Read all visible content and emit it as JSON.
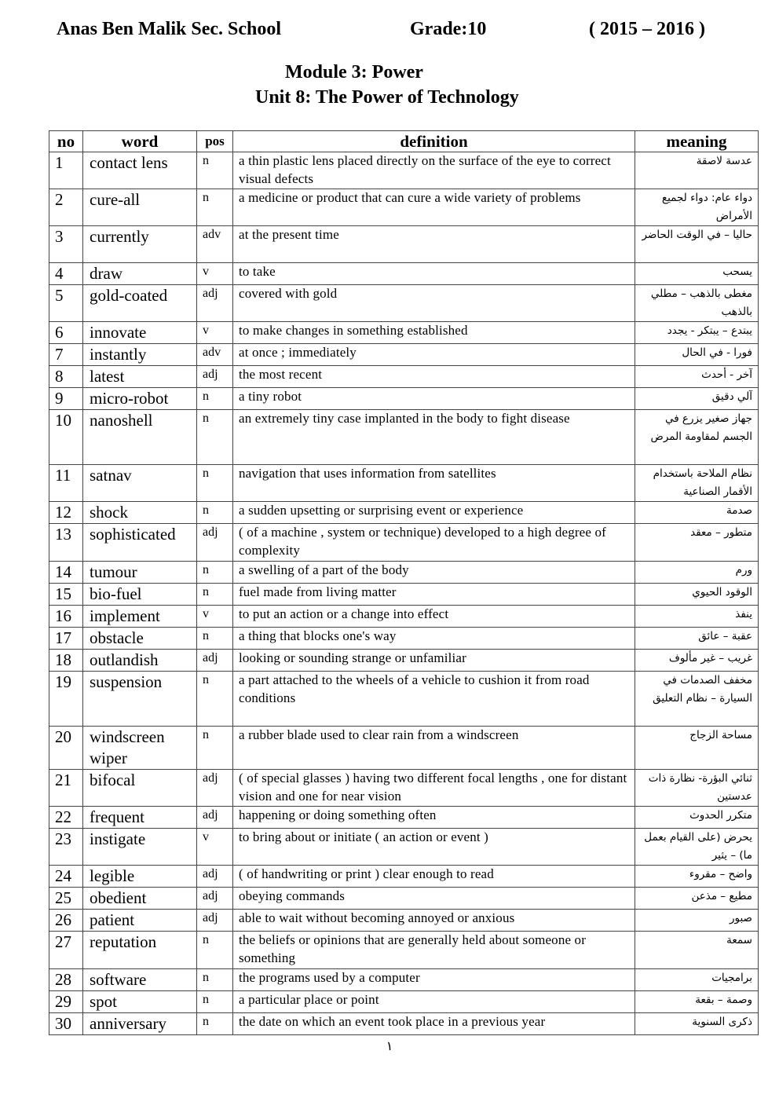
{
  "header": {
    "school": "Anas Ben Malik Sec. School",
    "grade": "Grade:10",
    "year": "( 2015 – 2016 )"
  },
  "module_title": "Module 3: Power",
  "unit_title": "Unit 8: The Power of Technology",
  "table": {
    "columns": [
      "no",
      "word",
      "pos",
      "definition",
      "meaning"
    ],
    "rows": [
      {
        "no": "1",
        "word": "contact lens",
        "pos": "n",
        "definition": "a thin plastic lens placed directly on the surface of the eye to correct visual defects",
        "meaning": "عدسة لاصقة"
      },
      {
        "no": "2",
        "word": "cure-all",
        "pos": "n",
        "definition": "a medicine or product that can cure a wide variety of problems",
        "meaning": "دواء عام: دواء لجميع الأمراض"
      },
      {
        "no": "3",
        "word": "currently",
        "pos": "adv",
        "definition": "at the present time",
        "meaning": "حاليا – في الوقت الحاضر"
      },
      {
        "no": "4",
        "word": "draw",
        "pos": "v",
        "definition": "to take",
        "meaning": "يسحب"
      },
      {
        "no": "5",
        "word": "gold-coated",
        "pos": "adj",
        "definition": "covered with gold",
        "meaning": "مغطى بالذهب – مطلي بالذهب"
      },
      {
        "no": "6",
        "word": "innovate",
        "pos": "v",
        "definition": "to make changes in something established",
        "meaning": "يبتدع – يبتكر - يجدد"
      },
      {
        "no": "7",
        "word": "instantly",
        "pos": "adv",
        "definition": "at once ; immediately",
        "meaning": "فورا - في الحال"
      },
      {
        "no": "8",
        "word": "latest",
        "pos": "adj",
        "definition": "the most recent",
        "meaning": "آخر - أحدث"
      },
      {
        "no": "9",
        "word": "micro-robot",
        "pos": "n",
        "definition": "a tiny robot",
        "meaning": "آلي دقيق"
      },
      {
        "no": "10",
        "word": "nanoshell",
        "pos": "n",
        "definition": "an extremely tiny case implanted in the body to fight disease",
        "meaning": "جهاز صغير يزرع في الجسم لمقاومة المرض"
      },
      {
        "no": "11",
        "word": "satnav",
        "pos": "n",
        "definition": "navigation that uses information from satellites",
        "meaning": "نظام الملاحة باستخدام الأقمار الصناعية"
      },
      {
        "no": "12",
        "word": "shock",
        "pos": "n",
        "definition": "a sudden upsetting or surprising event or experience",
        "meaning": "صدمة"
      },
      {
        "no": "13",
        "word": "sophisticated",
        "pos": "adj",
        "definition": "( of a machine , system or technique) developed to a high degree of complexity",
        "meaning": "متطور – معقد"
      },
      {
        "no": "14",
        "word": "tumour",
        "pos": "n",
        "definition": "a swelling of a part of the body",
        "meaning": "ورم"
      },
      {
        "no": "15",
        "word": "bio-fuel",
        "pos": "n",
        "definition": "fuel made from living matter",
        "meaning": "الوقود الحيوي"
      },
      {
        "no": "16",
        "word": "implement",
        "pos": "v",
        "definition": "to put an action or a change into effect",
        "meaning": "ينفذ"
      },
      {
        "no": "17",
        "word": "obstacle",
        "pos": "n",
        "definition": "a thing that blocks one's way",
        "meaning": "عقبة – عائق"
      },
      {
        "no": "18",
        "word": "outlandish",
        "pos": "adj",
        "definition": "looking or sounding strange or unfamiliar",
        "meaning": "غريب – غير مألوف"
      },
      {
        "no": "19",
        "word": "suspension",
        "pos": "n",
        "definition": "a part attached to the wheels of a vehicle to cushion it from road conditions",
        "meaning": "مخفف الصدمات في السيارة – نظام التعليق"
      },
      {
        "no": "20",
        "word": "windscreen wiper",
        "pos": "n",
        "definition": " a rubber blade used to clear rain from a windscreen",
        "meaning": "مساحة الزجاج"
      },
      {
        "no": "21",
        "word": "bifocal",
        "pos": "adj",
        "definition": "( of special glasses ) having two different focal lengths , one for distant vision and one for near vision",
        "meaning": "ثنائي البؤرة- نظارة ذات عدستين"
      },
      {
        "no": "22",
        "word": "frequent",
        "pos": "adj",
        "definition": "happening or doing something often",
        "meaning": "متكرر الحدوث"
      },
      {
        "no": "23",
        "word": "instigate",
        "pos": "v",
        "definition": "to bring about or initiate ( an action or event )",
        "meaning": "يحرض (على القيام بعمل ما) – يثير"
      },
      {
        "no": "24",
        "word": "legible",
        "pos": "adj",
        "definition": "( of handwriting or print ) clear enough to read",
        "meaning": "واضح – مقروء"
      },
      {
        "no": "25",
        "word": "obedient",
        "pos": "adj",
        "definition": "obeying commands",
        "meaning": "مطيع – مذعن"
      },
      {
        "no": "26",
        "word": "patient",
        "pos": "adj",
        "definition": "able to wait without becoming annoyed or anxious",
        "meaning": "صبور"
      },
      {
        "no": "27",
        "word": "reputation",
        "pos": "n",
        "definition": "the beliefs or opinions that are generally held about someone or something",
        "meaning": "سمعة"
      },
      {
        "no": "28",
        "word": "software",
        "pos": "n",
        "definition": "the programs used by a computer",
        "meaning": "برامجيات"
      },
      {
        "no": "29",
        "word": "spot",
        "pos": "n",
        "definition": "a particular place or point",
        "meaning": "وصمة – بقعة"
      },
      {
        "no": "30",
        "word": "anniversary",
        "pos": "n",
        "definition": "the date on which an event took place in a previous year",
        "meaning": "ذكرى السنوية"
      }
    ]
  },
  "page_number": "١"
}
